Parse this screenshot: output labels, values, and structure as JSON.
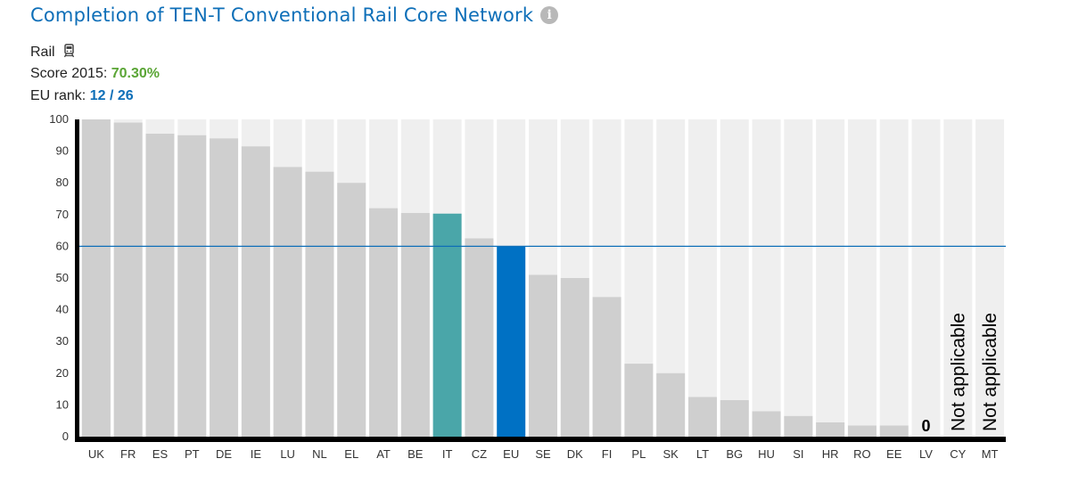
{
  "header": {
    "title": "Completion of TEN-T Conventional Rail Core Network",
    "mode_label": "Rail",
    "score_label": "Score 2015:",
    "score_value": "70.30%",
    "rank_label": "EU rank:",
    "rank_value": "12 / 26"
  },
  "icons": {
    "info": "info-icon",
    "mode": "train-icon"
  },
  "colors": {
    "bar_default": "#cfcfcf",
    "bar_background": "#efefef",
    "bar_highlight_country": "#4aa6a9",
    "bar_highlight_eu": "#0071c4",
    "reference_line": "#0e6fb8",
    "score_text": "#5aa535",
    "rank_text": "#0e6fb8"
  },
  "chart_data": {
    "type": "bar",
    "ylim": [
      0,
      100
    ],
    "yticks": [
      "0",
      "10",
      "20",
      "30",
      "40",
      "50",
      "60",
      "70",
      "80",
      "90",
      "100"
    ],
    "reference_value": 60,
    "highlight": {
      "country": "IT",
      "average": "EU"
    },
    "categories": [
      "UK",
      "FR",
      "ES",
      "PT",
      "DE",
      "IE",
      "LU",
      "NL",
      "EL",
      "AT",
      "BE",
      "IT",
      "CZ",
      "EU",
      "SE",
      "DK",
      "FI",
      "PL",
      "SK",
      "LT",
      "BG",
      "HU",
      "SI",
      "HR",
      "RO",
      "EE",
      "LV",
      "CY",
      "MT"
    ],
    "values": [
      100,
      99,
      95.5,
      95,
      94,
      91.5,
      85,
      83.5,
      80,
      72,
      70.5,
      70.3,
      62.5,
      60,
      51,
      50,
      44,
      23,
      20,
      12.5,
      11.5,
      8,
      6.5,
      4.5,
      3.5,
      3.5,
      0,
      null,
      null
    ],
    "data_labels": [
      {
        "category": "LV",
        "text": "0"
      },
      {
        "category": "CY",
        "text": "Not applicable"
      },
      {
        "category": "MT",
        "text": "Not applicable"
      }
    ]
  }
}
